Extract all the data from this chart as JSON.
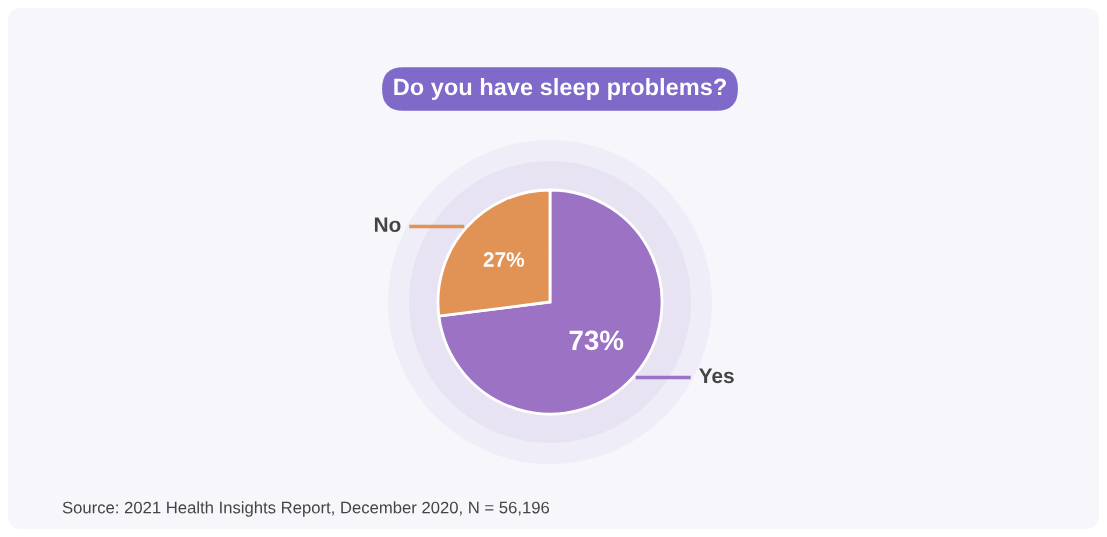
{
  "chart_data": {
    "type": "pie",
    "title": "Do you have sleep problems?",
    "categories": [
      "Yes",
      "No"
    ],
    "values": [
      73,
      27
    ],
    "colors": [
      "#9b72c4",
      "#e09355"
    ],
    "value_labels": [
      "73%",
      "27%"
    ],
    "legend": false,
    "annotations": [
      "Source: 2021 Health Insights Report, December 2020, N = 56,196"
    ]
  }
}
